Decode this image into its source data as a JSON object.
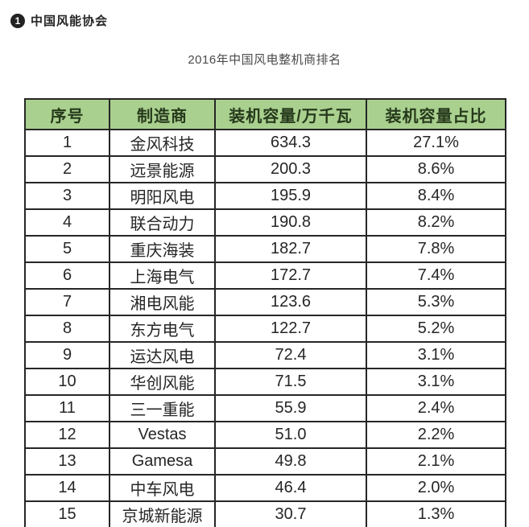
{
  "page": {
    "source_badge_number": "1",
    "source_label": "中国风能协会",
    "title": "2016年中国风电整机商排名"
  },
  "table": {
    "columns": [
      "序号",
      "制造商",
      "装机容量/万千瓦",
      "装机容量占比"
    ],
    "rows": [
      [
        "1",
        "金风科技",
        "634.3",
        "27.1%"
      ],
      [
        "2",
        "远景能源",
        "200.3",
        "8.6%"
      ],
      [
        "3",
        "明阳风电",
        "195.9",
        "8.4%"
      ],
      [
        "4",
        "联合动力",
        "190.8",
        "8.2%"
      ],
      [
        "5",
        "重庆海装",
        "182.7",
        "7.8%"
      ],
      [
        "6",
        "上海电气",
        "172.7",
        "7.4%"
      ],
      [
        "7",
        "湘电风能",
        "123.6",
        "5.3%"
      ],
      [
        "8",
        "东方电气",
        "122.7",
        "5.2%"
      ],
      [
        "9",
        "运达风电",
        "72.4",
        "3.1%"
      ],
      [
        "10",
        "华创风能",
        "71.5",
        "3.1%"
      ],
      [
        "11",
        "三一重能",
        "55.9",
        "2.4%"
      ],
      [
        "12",
        "Vestas",
        "51.0",
        "2.2%"
      ],
      [
        "13",
        "Gamesa",
        "49.8",
        "2.1%"
      ],
      [
        "14",
        "中车风电",
        "46.4",
        "2.0%"
      ],
      [
        "15",
        "京城新能源",
        "30.7",
        "1.3%"
      ]
    ],
    "colors": {
      "header_bg": "#a9d08e",
      "header_text": "#26391c",
      "border": "#262626",
      "body_text": "#262626",
      "title": "#4a4a4a",
      "badge_bg": "#222222"
    }
  }
}
